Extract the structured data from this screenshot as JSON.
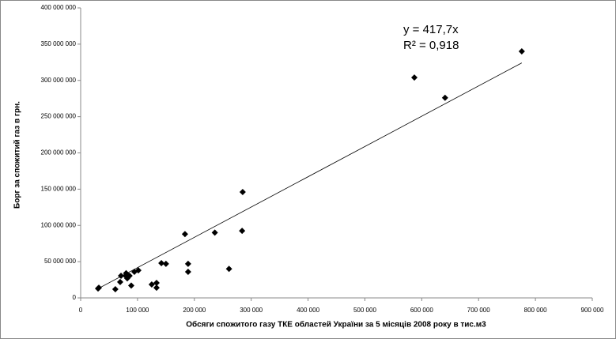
{
  "chart_data": {
    "type": "scatter",
    "x_label": "Обсяги спожитого газу ТКЕ областей України за 5 місяців 2008 року в тис.м3",
    "y_label": "Борг за спожитий газ в грн.",
    "x": [
      30600,
      32000,
      61000,
      69500,
      71000,
      79000,
      80000,
      82000,
      86000,
      89000,
      94500,
      101500,
      125000,
      133500,
      133500,
      142000,
      150000,
      183500,
      189000,
      189000,
      236000,
      261000,
      284000,
      285000,
      587000,
      641000,
      776000
    ],
    "values": [
      13000000,
      14000000,
      12000000,
      22000000,
      30500000,
      30500000,
      34000000,
      27000000,
      30500000,
      17000000,
      36000000,
      38000000,
      18500000,
      20700000,
      14000000,
      48000000,
      47000000,
      88000000,
      47000000,
      36000000,
      90000000,
      40000000,
      92500000,
      146000000,
      304000000,
      276000000,
      340000000
    ],
    "color": "#000000",
    "trendline": {
      "slope": 417.7,
      "equation": "y = 417,7x",
      "r2": "R² = 0,918"
    },
    "xlim": [
      0,
      900000
    ],
    "xticks": [
      0,
      {
        "value": 100000,
        "label": "100 000"
      },
      {
        "value": 200000,
        "label": "200 000"
      },
      {
        "value": 300000,
        "label": "300 000"
      },
      {
        "value": 400000,
        "label": "400 000"
      },
      {
        "value": 500000,
        "label": "500 000"
      },
      {
        "value": 600000,
        "label": "600 000"
      },
      {
        "value": 700000,
        "label": "700 000"
      },
      {
        "value": 800000,
        "label": "800 000"
      },
      {
        "value": 900000,
        "label": "900 000"
      }
    ],
    "ylim": [
      0,
      400000000
    ],
    "yticks": [
      0,
      {
        "value": 50000000,
        "label": "50 000 000"
      },
      {
        "value": 100000000,
        "label": "100 000 000"
      },
      {
        "value": 150000000,
        "label": "150 000 000"
      },
      {
        "value": 200000000,
        "label": "200 000 000"
      },
      {
        "value": 250000000,
        "label": "250 000 000"
      },
      {
        "value": 300000000,
        "label": "300 000 000"
      },
      {
        "value": 350000000,
        "label": "350 000 000"
      },
      {
        "value": 400000000,
        "label": "400 000 000"
      }
    ],
    "grid": false
  }
}
